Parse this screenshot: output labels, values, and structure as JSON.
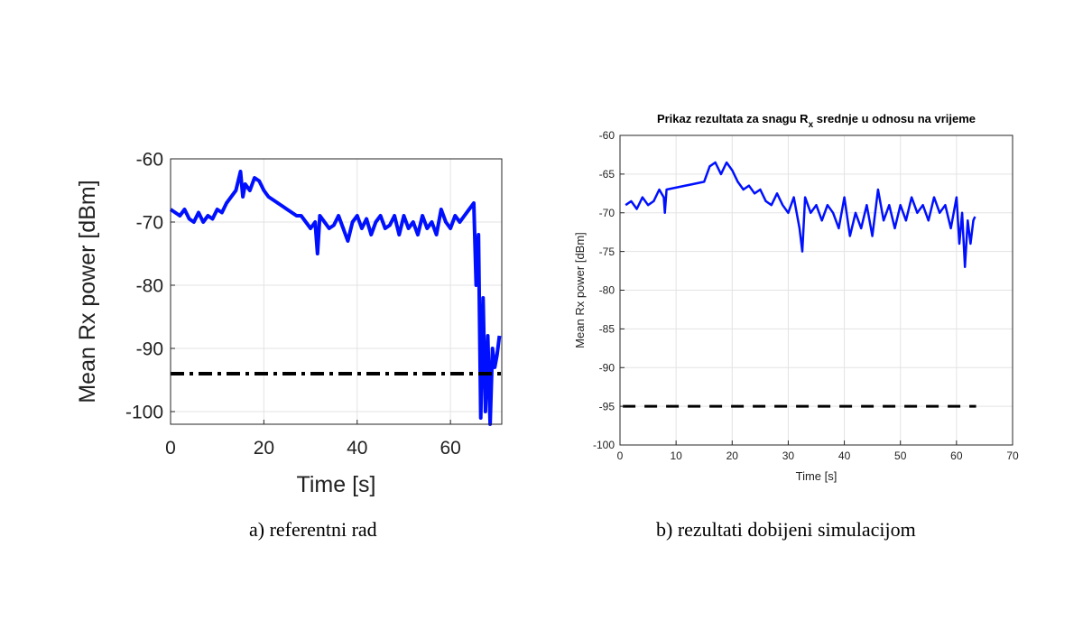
{
  "captions": {
    "a": "a) referentni rad",
    "b": "b) rezultati dobijeni simulacijom"
  },
  "chart_data": [
    {
      "type": "line",
      "title": "",
      "xlabel": "Time [s]",
      "ylabel": "Mean Rx power [dBm]",
      "xlim": [
        0,
        71
      ],
      "ylim": [
        -102,
        -60
      ],
      "xticks": [
        0,
        20,
        40,
        60
      ],
      "yticks": [
        -60,
        -70,
        -80,
        -90,
        -100
      ],
      "grid": true,
      "colors": {
        "series": "#0010ff",
        "threshold": "#000000"
      },
      "series": [
        {
          "style": "solid",
          "x": [
            0,
            1,
            2,
            3,
            4,
            5,
            6,
            7,
            8,
            9,
            10,
            11,
            12,
            13,
            14,
            15,
            15.5,
            16,
            17,
            18,
            19,
            20,
            21,
            22,
            23,
            24,
            25,
            26,
            27,
            28,
            29,
            30,
            31,
            31.5,
            32,
            33,
            34,
            35,
            36,
            37,
            38,
            39,
            40,
            41,
            42,
            43,
            44,
            45,
            46,
            47,
            48,
            49,
            50,
            51,
            52,
            53,
            54,
            55,
            56,
            57,
            58,
            59,
            60,
            61,
            62,
            63,
            64,
            65,
            65.5,
            66,
            66.5,
            67,
            67.5,
            68,
            68.5,
            69,
            69.5,
            70,
            70.5
          ],
          "y": [
            -68,
            -68.5,
            -69,
            -68,
            -69.5,
            -70,
            -68.5,
            -70,
            -69,
            -69.5,
            -68,
            -68.5,
            -67,
            -66,
            -65,
            -62,
            -66,
            -64,
            -65,
            -63,
            -63.5,
            -65,
            -66,
            -66.5,
            -67,
            -67.5,
            -68,
            -68.5,
            -69,
            -69,
            -70,
            -71,
            -70,
            -75,
            -69,
            -70,
            -71,
            -70.5,
            -69,
            -71,
            -73,
            -70,
            -69,
            -71,
            -69.5,
            -72,
            -70,
            -69,
            -71,
            -70.5,
            -69,
            -72,
            -69,
            -71,
            -70,
            -72,
            -69,
            -71,
            -70,
            -72,
            -68,
            -70,
            -71,
            -69,
            -70,
            -69,
            -68,
            -67,
            -80,
            -72,
            -101,
            -82,
            -100,
            -88,
            -102,
            -90,
            -93,
            -91,
            -88
          ]
        },
        {
          "style": "dashdot",
          "x": [
            0,
            71
          ],
          "y": [
            -94,
            -94
          ]
        }
      ]
    },
    {
      "type": "line",
      "title": "Prikaz rezultata za snagu R",
      "title_sub": "x",
      "title_rest": " srednje u odnosu na vrijeme",
      "xlabel": "Time [s]",
      "ylabel": "Mean Rx power [dBm]",
      "xlim": [
        0,
        70
      ],
      "ylim": [
        -100,
        -60
      ],
      "xticks": [
        0,
        10,
        20,
        30,
        40,
        50,
        60,
        70
      ],
      "yticks": [
        -60,
        -65,
        -70,
        -75,
        -80,
        -85,
        -90,
        -95,
        -100
      ],
      "grid": true,
      "colors": {
        "series": "#0010ff",
        "threshold": "#000000"
      },
      "series": [
        {
          "style": "solid",
          "x": [
            1,
            2,
            3,
            4,
            5,
            6,
            7,
            7.8,
            8,
            8.3,
            15,
            16,
            17,
            18,
            19,
            20,
            21,
            22,
            23,
            24,
            25,
            26,
            27,
            28,
            29,
            30,
            31,
            32,
            32.5,
            33,
            34,
            35,
            36,
            37,
            38,
            39,
            40,
            41,
            42,
            43,
            44,
            45,
            46,
            47,
            48,
            49,
            50,
            51,
            52,
            53,
            54,
            55,
            56,
            57,
            58,
            59,
            60,
            60.5,
            61,
            61.5,
            62,
            62.5,
            63,
            63.3
          ],
          "y": [
            -69,
            -68.5,
            -69.5,
            -68,
            -69,
            -68.5,
            -67,
            -68,
            -70,
            -67,
            -66,
            -64,
            -63.5,
            -65,
            -63.5,
            -64.5,
            -66,
            -67,
            -66.5,
            -67.5,
            -67,
            -68.5,
            -69,
            -67.5,
            -69,
            -70,
            -68,
            -72,
            -75,
            -68,
            -70,
            -69,
            -71,
            -69,
            -70,
            -72,
            -68,
            -73,
            -70,
            -72,
            -69,
            -73,
            -67,
            -71,
            -69,
            -72,
            -69,
            -71,
            -68,
            -70,
            -69,
            -71,
            -68,
            -70,
            -69,
            -72,
            -68,
            -74,
            -70,
            -77,
            -71,
            -74,
            -71,
            -70.5
          ]
        },
        {
          "style": "dashed",
          "x": [
            0.5,
            63.5
          ],
          "y": [
            -95,
            -95
          ]
        }
      ]
    }
  ]
}
